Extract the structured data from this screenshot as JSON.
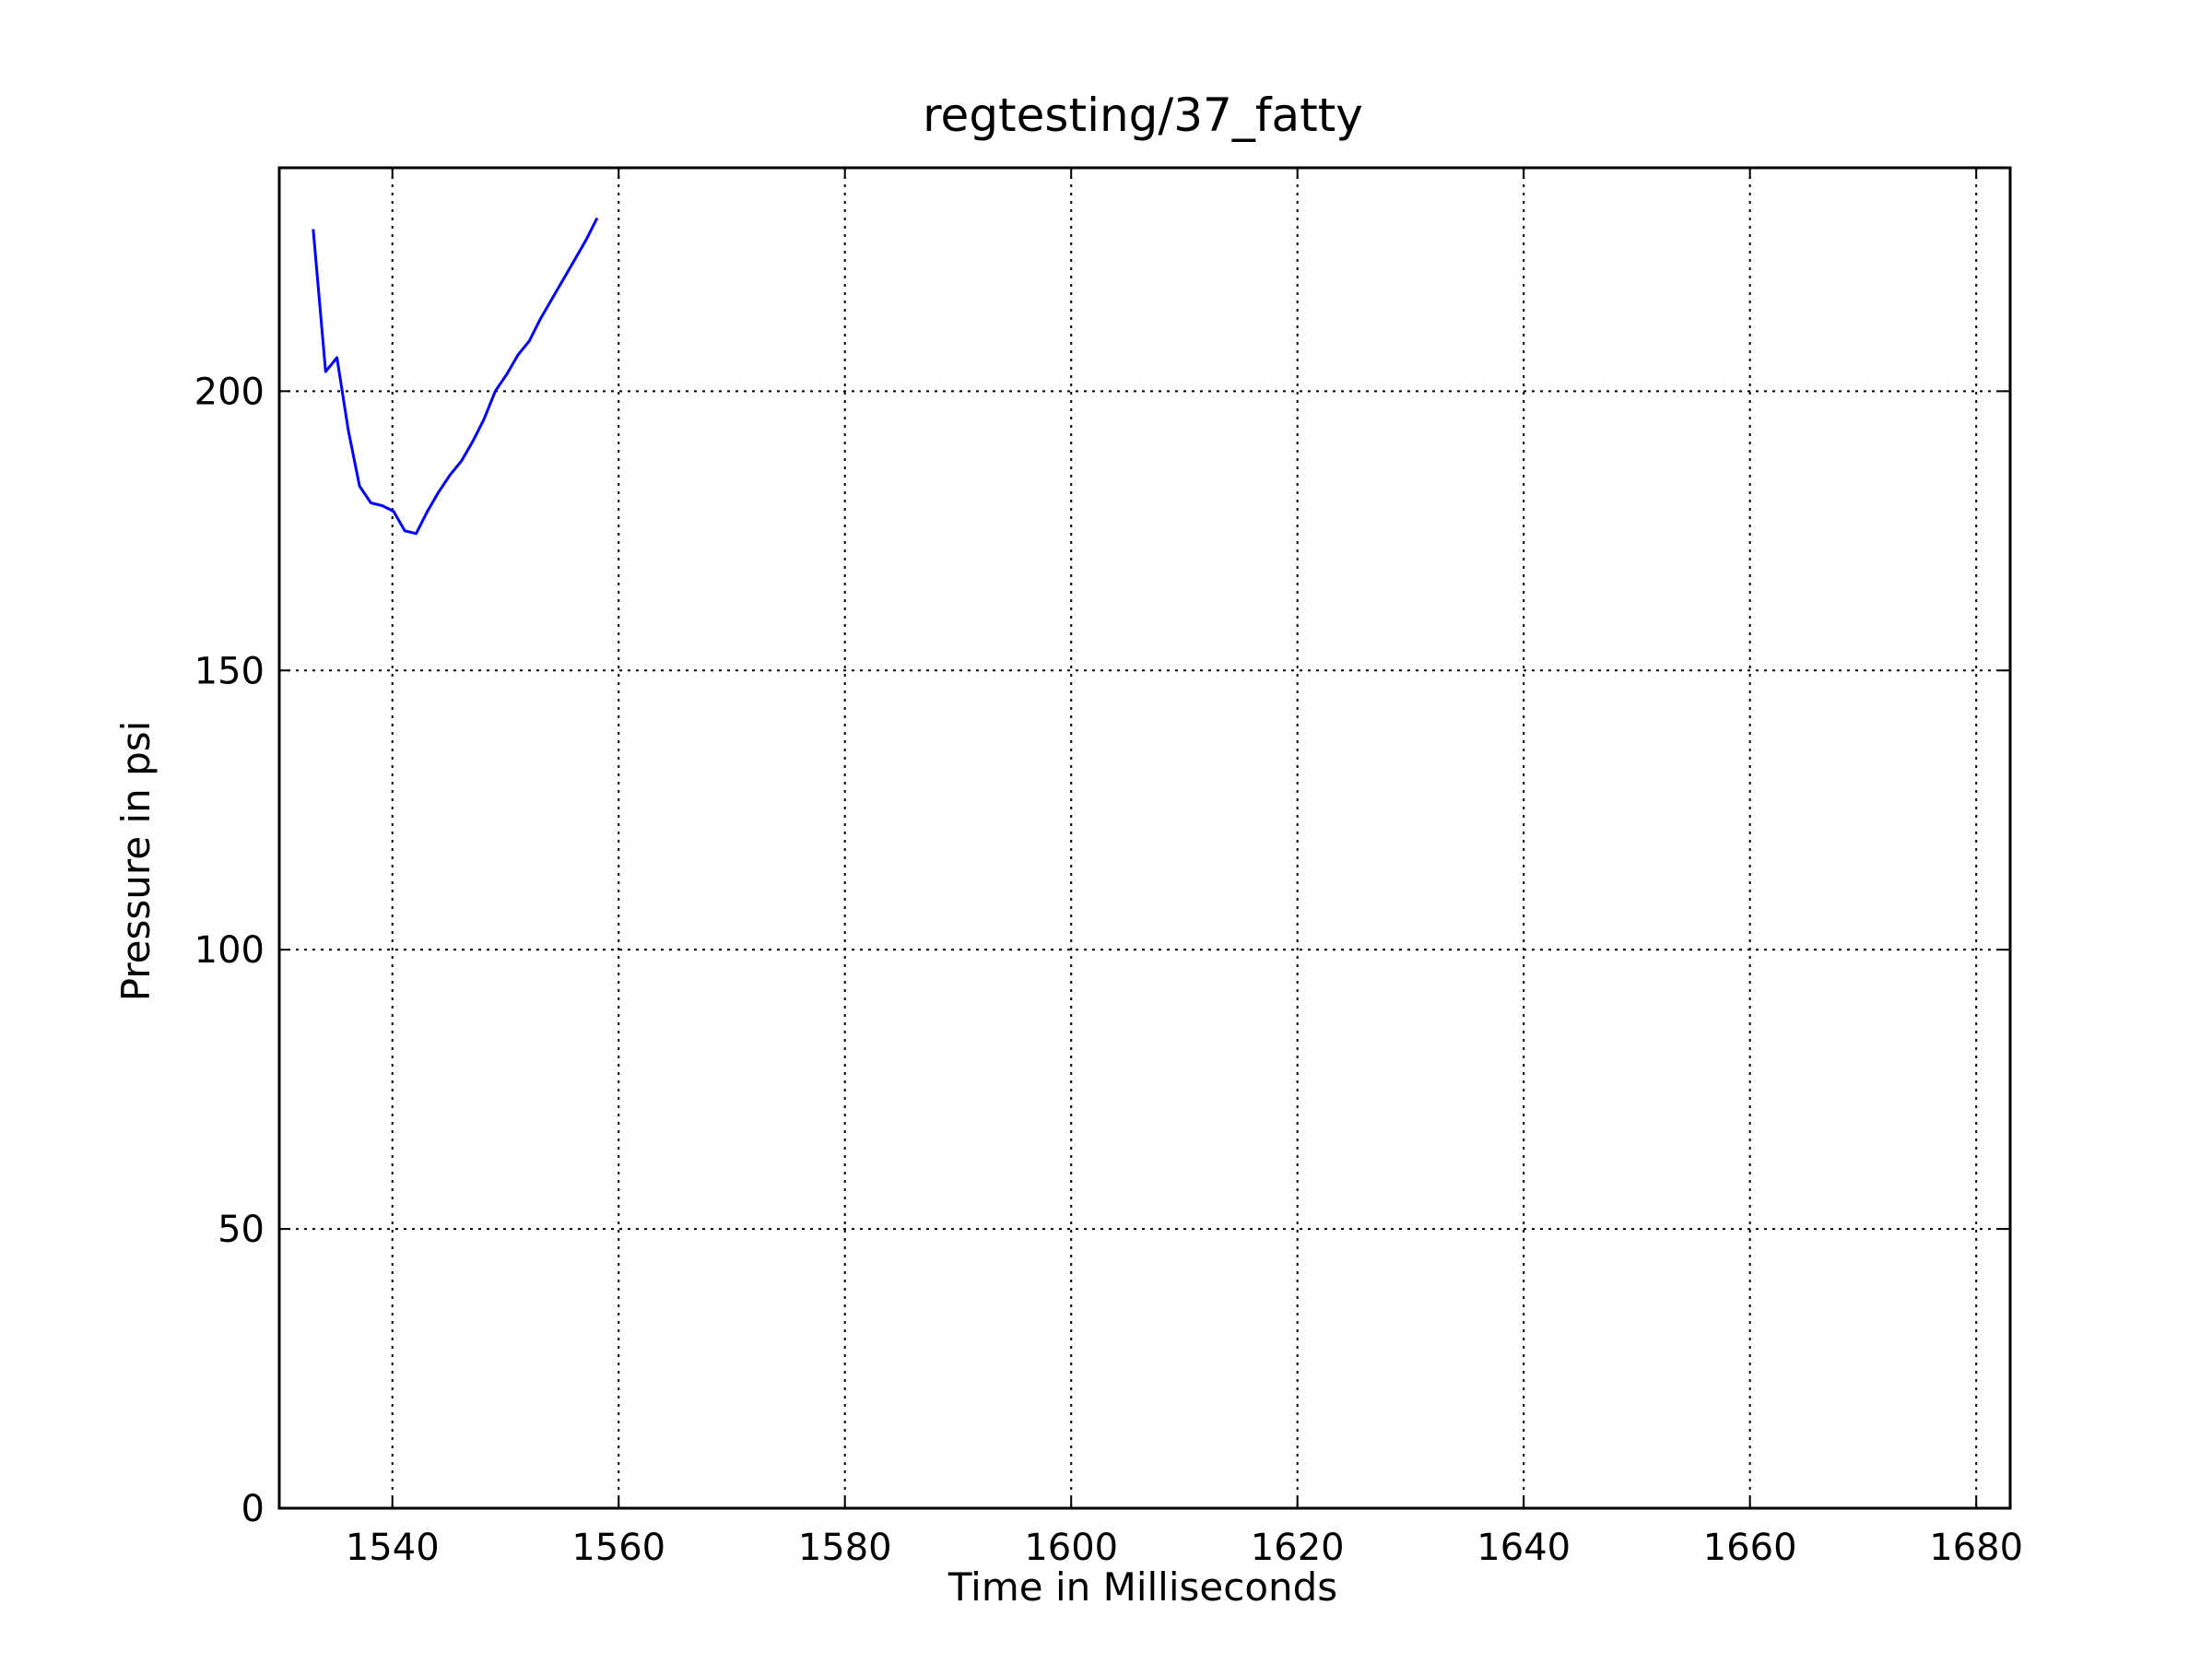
{
  "chart_data": {
    "type": "line",
    "title": "regtesting/37_fatty",
    "xlabel": "Time in Milliseconds",
    "ylabel": "Pressure in psi",
    "xlim": [
      1530,
      1683
    ],
    "ylim": [
      0,
      240
    ],
    "xticks": [
      1540,
      1560,
      1580,
      1600,
      1620,
      1640,
      1660,
      1680
    ],
    "yticks": [
      0,
      50,
      100,
      150,
      200
    ],
    "grid": true,
    "grid_style": "dotted",
    "series": [
      {
        "color": "#0000ff",
        "x": [
          1533.0,
          1534.1,
          1535.1,
          1536.1,
          1537.1,
          1538.1,
          1539.1,
          1540.1,
          1541.1,
          1542.1,
          1543.1,
          1544.1,
          1545.1,
          1546.1,
          1547.1,
          1548.1,
          1549.1,
          1550.1,
          1551.1,
          1552.1,
          1553.1,
          1554.1,
          1555.1,
          1556.1,
          1557.1,
          1558.1
        ],
        "y": [
          229.0,
          203.5,
          206.0,
          193.0,
          183.0,
          180.0,
          179.5,
          178.5,
          175.0,
          174.5,
          178.5,
          182.0,
          185.0,
          187.5,
          191.0,
          195.0,
          200.0,
          203.0,
          206.5,
          209.0,
          213.0,
          216.5,
          220.0,
          223.5,
          227.0,
          231.0
        ]
      }
    ]
  }
}
